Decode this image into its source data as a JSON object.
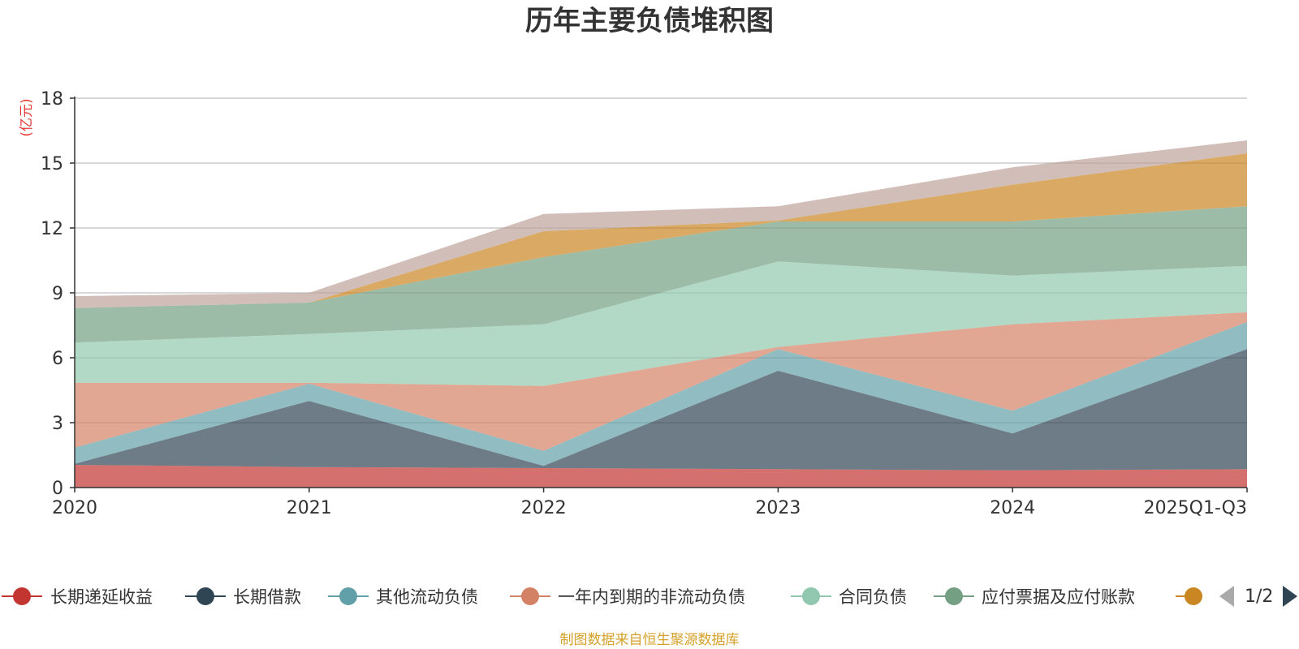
{
  "chart_data": {
    "type": "area",
    "stacked": true,
    "title": "历年主要负债堆积图",
    "unit_label": "(亿元)",
    "categories": [
      "2020",
      "2021",
      "2022",
      "2023",
      "2024",
      "2025Q1-Q3"
    ],
    "ylim": [
      0,
      18
    ],
    "yticks": [
      "0",
      "3",
      "6",
      "9",
      "12",
      "15",
      "18"
    ],
    "grid": true,
    "series": [
      {
        "name": "长期递延收益",
        "color": "#c23531",
        "values": [
          1.05,
          0.95,
          0.9,
          0.85,
          0.8,
          0.85
        ]
      },
      {
        "name": "长期借款",
        "color": "#2f4554",
        "values": [
          0.05,
          3.05,
          0.1,
          4.55,
          1.7,
          5.55
        ]
      },
      {
        "name": "其他流动负债",
        "color": "#61a0a8",
        "values": [
          0.75,
          0.8,
          0.7,
          1.0,
          1.05,
          1.25
        ]
      },
      {
        "name": "一年内到期的非流动负债",
        "color": "#d48265",
        "values": [
          3.0,
          0.05,
          3.0,
          0.1,
          4.0,
          0.45
        ]
      },
      {
        "name": "合同负债",
        "color": "#91c7ae",
        "values": [
          1.85,
          2.25,
          2.85,
          3.95,
          2.25,
          2.15
        ]
      },
      {
        "name": "应付票据及应付账款",
        "color": "#749f83",
        "values": [
          1.6,
          1.45,
          3.1,
          1.85,
          2.5,
          2.75
        ]
      },
      {
        "name": "",
        "color": "#ca8622",
        "values": [
          0.0,
          0.0,
          1.2,
          0.05,
          1.7,
          2.45
        ]
      },
      {
        "name": "",
        "color": "#bda29a",
        "values": [
          0.55,
          0.45,
          0.8,
          0.65,
          0.8,
          0.6
        ]
      }
    ]
  },
  "legend": {
    "page": "1/2"
  },
  "footer": {
    "source": "制图数据来自恒生聚源数据库"
  }
}
